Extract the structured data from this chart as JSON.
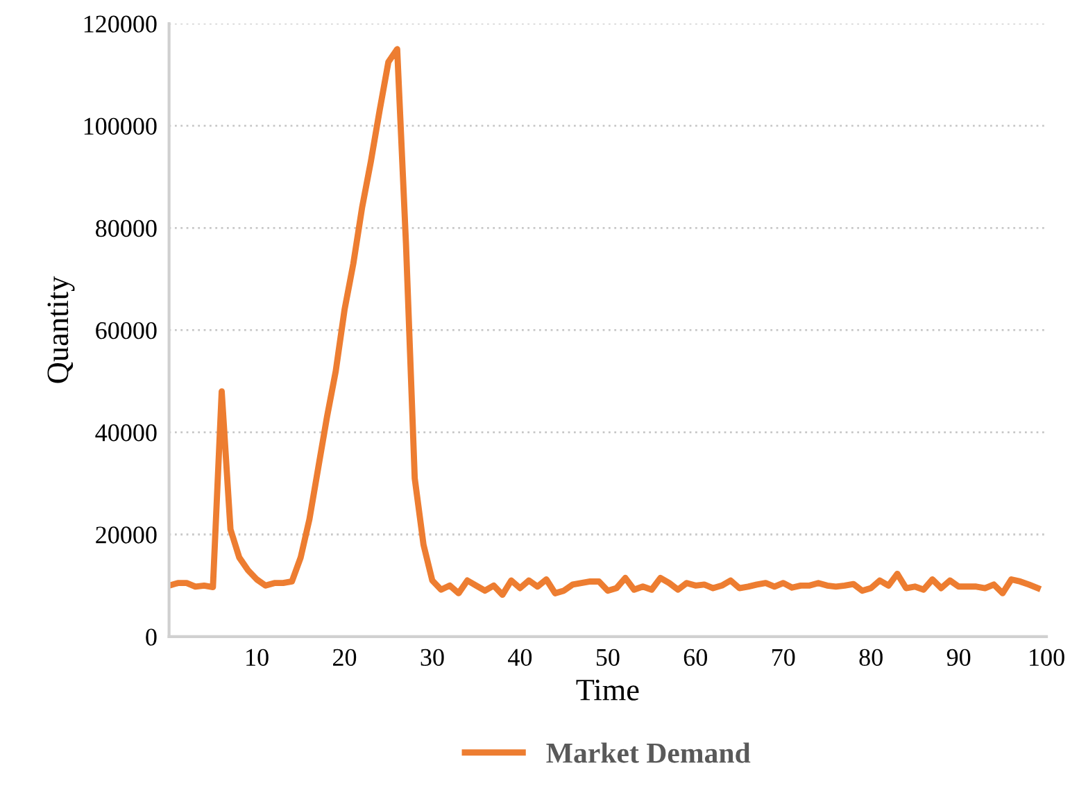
{
  "chart_data": {
    "type": "line",
    "xlabel": "Time",
    "ylabel": "Quantity",
    "x": [
      0,
      1,
      2,
      3,
      4,
      5,
      6,
      7,
      8,
      9,
      10,
      11,
      12,
      13,
      14,
      15,
      16,
      17,
      18,
      19,
      20,
      21,
      22,
      23,
      24,
      25,
      26,
      27,
      28,
      29,
      30,
      31,
      32,
      33,
      34,
      35,
      36,
      37,
      38,
      39,
      40,
      41,
      42,
      43,
      44,
      45,
      46,
      47,
      48,
      49,
      50,
      51,
      52,
      53,
      54,
      55,
      56,
      57,
      58,
      59,
      60,
      61,
      62,
      63,
      64,
      65,
      66,
      67,
      68,
      69,
      70,
      71,
      72,
      73,
      74,
      75,
      76,
      77,
      78,
      79,
      80,
      81,
      82,
      83,
      84,
      85,
      86,
      87,
      88,
      89,
      90,
      91,
      92,
      93,
      94,
      95,
      96,
      97,
      98,
      99
    ],
    "series": [
      {
        "name": "Market Demand",
        "color": "#ed7d31",
        "values": [
          10000,
          10500,
          10500,
          9800,
          10000,
          9700,
          48000,
          21000,
          15500,
          13000,
          11200,
          10000,
          10500,
          10500,
          10800,
          15500,
          23000,
          33000,
          43000,
          52000,
          64000,
          73000,
          84000,
          93000,
          103000,
          112500,
          115000,
          77000,
          31000,
          18000,
          11000,
          9200,
          10000,
          8500,
          11000,
          10000,
          9000,
          10000,
          8200,
          11000,
          9500,
          11000,
          9800,
          11200,
          8500,
          9000,
          10200,
          10500,
          10800,
          10800,
          9000,
          9500,
          11500,
          9200,
          9800,
          9200,
          11500,
          10500,
          9200,
          10500,
          10000,
          10200,
          9500,
          10000,
          11000,
          9500,
          9800,
          10200,
          10500,
          9800,
          10500,
          9600,
          10000,
          10000,
          10500,
          10000,
          9800,
          10000,
          10300,
          9000,
          9500,
          11000,
          10000,
          12300,
          9500,
          9800,
          9200,
          11200,
          9500,
          11000,
          9800,
          9800,
          9800,
          9500,
          10200,
          8500,
          11200,
          10800,
          10200,
          9500
        ]
      }
    ],
    "xlim": [
      0,
      100
    ],
    "xticks": [
      10,
      20,
      30,
      40,
      50,
      60,
      70,
      80,
      90,
      100
    ],
    "ylim": [
      0,
      120000
    ],
    "yticks": [
      0,
      20000,
      40000,
      60000,
      80000,
      100000,
      120000
    ],
    "grid": "y",
    "legend": "bottom",
    "line_style": "solid",
    "marker": "none"
  }
}
